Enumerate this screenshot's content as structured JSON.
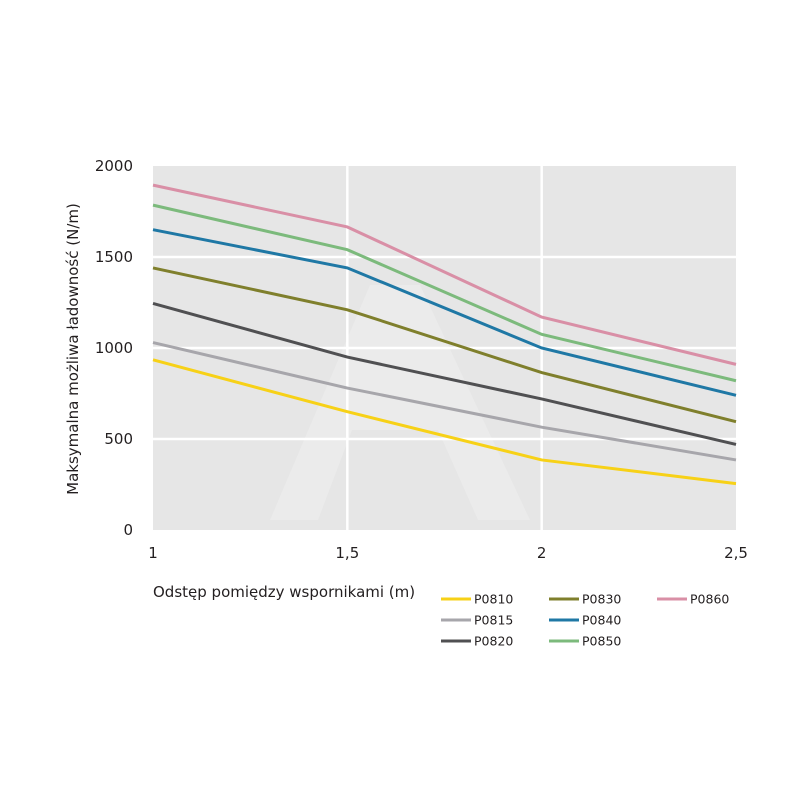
{
  "chart_data": {
    "type": "line",
    "xlabel": "Odstęp pomiędzy wspornikami (m)",
    "ylabel": "Maksymalna możliwa ładowność (N/m)",
    "x": [
      1,
      1.5,
      2,
      2.5
    ],
    "x_tick_labels": [
      "1",
      "1,5",
      "2",
      "2,5"
    ],
    "y_ticks": [
      0,
      500,
      1000,
      1500,
      2000
    ],
    "y_tick_labels": [
      "0",
      "500",
      "1000",
      "1500",
      "2000"
    ],
    "xlim": [
      1,
      2.5
    ],
    "ylim": [
      0,
      2000
    ],
    "grid": true,
    "legend_position": "bottom",
    "series": [
      {
        "name": "P0810",
        "color": "#f7d117",
        "values": [
          935,
          650,
          385,
          255
        ]
      },
      {
        "name": "P0815",
        "color": "#a7a6ab",
        "values": [
          1030,
          780,
          565,
          385
        ]
      },
      {
        "name": "P0820",
        "color": "#505052",
        "values": [
          1245,
          950,
          720,
          470
        ]
      },
      {
        "name": "P0830",
        "color": "#7f7f2c",
        "values": [
          1440,
          1210,
          865,
          595
        ]
      },
      {
        "name": "P0840",
        "color": "#1f78a5",
        "values": [
          1650,
          1440,
          1000,
          740
        ]
      },
      {
        "name": "P0850",
        "color": "#7cba7c",
        "values": [
          1785,
          1540,
          1075,
          820
        ]
      },
      {
        "name": "P0860",
        "color": "#d98fa6",
        "values": [
          1895,
          1665,
          1170,
          910
        ]
      }
    ]
  }
}
